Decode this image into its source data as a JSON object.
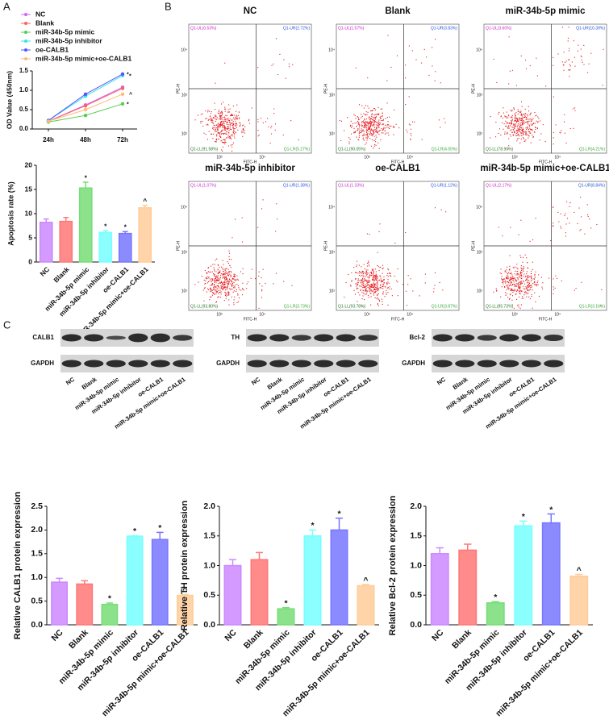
{
  "panel_labels": [
    "A",
    "B",
    "C"
  ],
  "chart_data": [
    {
      "type": "line",
      "ylabel": "OD Value (450nm)",
      "categories": [
        "24h",
        "48h",
        "72h"
      ],
      "ylim": [
        0,
        1.5
      ],
      "yticks": [
        {
          "value": 0,
          "label": "0.0"
        },
        {
          "value": 0.5,
          "label": "0.5"
        },
        {
          "value": 1,
          "label": "1.0"
        },
        {
          "value": 1.5,
          "label": "1.5"
        }
      ],
      "series": [
        {
          "name": "NC",
          "color": "#cc66ff",
          "values": [
            0.2,
            0.62,
            1.08
          ],
          "sig": [
            null,
            null,
            null
          ]
        },
        {
          "name": "Blank",
          "color": "#ff5f5f",
          "values": [
            0.2,
            0.6,
            1.05
          ],
          "sig": [
            null,
            null,
            null
          ]
        },
        {
          "name": "miR-34b-5p mimic",
          "color": "#55cc55",
          "values": [
            0.18,
            0.35,
            0.65
          ],
          "sig": [
            null,
            null,
            "*"
          ]
        },
        {
          "name": "miR-34b-5p inhibitor",
          "color": "#33e6e6",
          "values": [
            0.22,
            0.85,
            1.38
          ],
          "sig": [
            null,
            null,
            "*"
          ]
        },
        {
          "name": "oe-CALB1",
          "color": "#5555ff",
          "values": [
            0.22,
            0.9,
            1.42
          ],
          "sig": [
            null,
            null,
            "*"
          ]
        },
        {
          "name": "miR-34b-5p mimic+oe-CALB1",
          "color": "#ffbb77",
          "values": [
            0.2,
            0.5,
            0.9
          ],
          "sig": [
            null,
            null,
            "^"
          ]
        }
      ]
    },
    {
      "type": "bar",
      "ylabel": "Apoptosis rate (%)",
      "categories": [
        "NC",
        "Blank",
        "miR-34b-5p mimic",
        "miR-34b-5p inhibitor",
        "oe-CALB1",
        "miR-34b-5p mimic+oe-CALB1"
      ],
      "values": [
        8.2,
        8.4,
        15.3,
        6.1,
        5.9,
        11.2
      ],
      "errors": [
        0.7,
        0.8,
        1.2,
        0.4,
        0.4,
        0.5
      ],
      "sig": [
        null,
        null,
        "*",
        "*",
        "*",
        "^"
      ],
      "colors": [
        "#cc88ff",
        "#ff7777",
        "#77dd77",
        "#77ffff",
        "#7777ff",
        "#ffcc99"
      ],
      "ylim": [
        0,
        20
      ],
      "yticks": [
        0,
        5,
        10,
        15,
        20
      ]
    },
    {
      "type": "flow",
      "xlabel": "FITC-H",
      "ylabel": "PE-H",
      "x_ticks": [
        "10³",
        "10⁴"
      ],
      "y_ticks": [
        "10²",
        "10³",
        "10⁴"
      ],
      "panels": [
        {
          "title": "NC",
          "quadrants": [
            {
              "value": 0.53,
              "label": "Q1-UL(0.53%)"
            },
            {
              "value": 2.72,
              "label": "Q1-UR(2.72%)"
            },
            {
              "value": 91.58,
              "label": "Q1-LL(91.58%)"
            },
            {
              "value": 5.27,
              "label": "Q1-LR(5.27%)"
            }
          ]
        },
        {
          "title": "Blank",
          "quadrants": [
            {
              "value": 1.57,
              "label": "Q1-UL(1.57%)"
            },
            {
              "value": 3.83,
              "label": "Q1-UR(3.83%)"
            },
            {
              "value": 90.05,
              "label": "Q1-LL(90.05%)"
            },
            {
              "value": 4.55,
              "label": "Q1-LR(4.55%)"
            }
          ]
        },
        {
          "title": "miR-34b-5p mimic",
          "quadrants": [
            {
              "value": 3.6,
              "label": "Q1-UL(3.60%)"
            },
            {
              "value": 10.39,
              "label": "Q1-UR(10.39%)"
            },
            {
              "value": 78.9,
              "label": "Q1-LL(78.90%)"
            },
            {
              "value": 4.21,
              "label": "Q1-LR(4.21%)"
            }
          ]
        },
        {
          "title": "miR-34b-5p inhibitor",
          "quadrants": [
            {
              "value": 1.07,
              "label": "Q1-UL(1.07%)"
            },
            {
              "value": 1.38,
              "label": "Q1-UR(1.38%)"
            },
            {
              "value": 93.8,
              "label": "Q1-LL(93.80%)"
            },
            {
              "value": 3.73,
              "label": "Q1-LR(3.73%)"
            }
          ]
        },
        {
          "title": "oe-CALB1",
          "quadrants": [
            {
              "value": 1.33,
              "label": "Q1-UL(1.33%)"
            },
            {
              "value": 1.12,
              "label": "Q1-UR(1.12%)"
            },
            {
              "value": 93.78,
              "label": "Q1-LL(93.78%)"
            },
            {
              "value": 3.87,
              "label": "Q1-LR(3.87%)"
            }
          ]
        },
        {
          "title": "miR-34b-5p mimic+oe-CALB1",
          "quadrants": [
            {
              "value": 2.17,
              "label": "Q1-UL(2.17%)"
            },
            {
              "value": 8.84,
              "label": "Q1-UR(8.84%)"
            },
            {
              "value": 85.73,
              "label": "Q1-LL(85.73%)"
            },
            {
              "value": 3.16,
              "label": "Q1-LR(3.16%)"
            }
          ]
        }
      ]
    },
    {
      "type": "blot",
      "categories": [
        "NC",
        "Blank",
        "miR-34b-5p mimic",
        "miR-34b-5p inhibitor",
        "oe-CALB1",
        "miR-34b-5p mimic+oe-CALB1"
      ],
      "panels": [
        {
          "protein": "CALB1",
          "control": "GAPDH"
        },
        {
          "protein": "TH",
          "control": "GAPDH"
        },
        {
          "protein": "Bcl-2",
          "control": "GAPDH"
        }
      ]
    },
    {
      "type": "bar",
      "ylabel": "Relative CALB1 protein expression",
      "categories": [
        "NC",
        "Blank",
        "miR-34b-5p mimic",
        "miR-34b-5p inhibitor",
        "oe-CALB1",
        "miR-34b-5p mimic+oe-CALB1"
      ],
      "values": [
        0.9,
        0.86,
        0.43,
        1.87,
        1.8,
        0.62
      ],
      "errors": [
        0.08,
        0.07,
        0.03,
        0.01,
        0.15,
        0.02
      ],
      "sig": [
        null,
        null,
        "*",
        "*",
        "*",
        "^"
      ],
      "colors": [
        "#cc88ff",
        "#ff7777",
        "#77dd77",
        "#77ffff",
        "#7777ff",
        "#ffcc99"
      ],
      "ylim": [
        0,
        2.5
      ],
      "yticks": [
        {
          "value": 0,
          "label": "0.0"
        },
        {
          "value": 0.5,
          "label": "0.5"
        },
        {
          "value": 1,
          "label": "1.0"
        },
        {
          "value": 1.5,
          "label": "1.5"
        },
        {
          "value": 2,
          "label": "2.0"
        },
        {
          "value": 2.5,
          "label": "2.5"
        }
      ]
    },
    {
      "type": "bar",
      "ylabel": "Relative TH protein expression",
      "categories": [
        "NC",
        "Blank",
        "miR-34b-5p mimic",
        "miR-34b-5p inhibitor",
        "oe-CALB1",
        "miR-34b-5p mimic+oe-CALB1"
      ],
      "values": [
        1.0,
        1.1,
        0.27,
        1.5,
        1.6,
        0.66
      ],
      "errors": [
        0.1,
        0.12,
        0.02,
        0.1,
        0.2,
        0.02
      ],
      "sig": [
        null,
        null,
        "*",
        "*",
        "*",
        "^"
      ],
      "colors": [
        "#cc88ff",
        "#ff7777",
        "#77dd77",
        "#77ffff",
        "#7777ff",
        "#ffcc99"
      ],
      "ylim": [
        0,
        2
      ],
      "yticks": [
        {
          "value": 0,
          "label": "0.0"
        },
        {
          "value": 0.5,
          "label": "0.5"
        },
        {
          "value": 1,
          "label": "1.0"
        },
        {
          "value": 1.5,
          "label": "1.5"
        },
        {
          "value": 2,
          "label": "2.0"
        }
      ]
    },
    {
      "type": "bar",
      "ylabel": "Relative Bcl-2 protein expression",
      "categories": [
        "NC",
        "Blank",
        "miR-34b-5p mimic",
        "miR-34b-5p inhibitor",
        "oe-CALB1",
        "miR-34b-5p mimic+oe-CALB1"
      ],
      "values": [
        1.2,
        1.26,
        0.37,
        1.67,
        1.72,
        0.82
      ],
      "errors": [
        0.1,
        0.1,
        0.02,
        0.08,
        0.15,
        0.03
      ],
      "sig": [
        null,
        null,
        "*",
        "*",
        "*",
        "^"
      ],
      "colors": [
        "#cc88ff",
        "#ff7777",
        "#77dd77",
        "#77ffff",
        "#7777ff",
        "#ffcc99"
      ],
      "ylim": [
        0,
        2
      ],
      "yticks": [
        {
          "value": 0,
          "label": "0.0"
        },
        {
          "value": 0.5,
          "label": "0.5"
        },
        {
          "value": 1,
          "label": "1.0"
        },
        {
          "value": 1.5,
          "label": "1.5"
        },
        {
          "value": 2,
          "label": "2.0"
        }
      ]
    }
  ]
}
